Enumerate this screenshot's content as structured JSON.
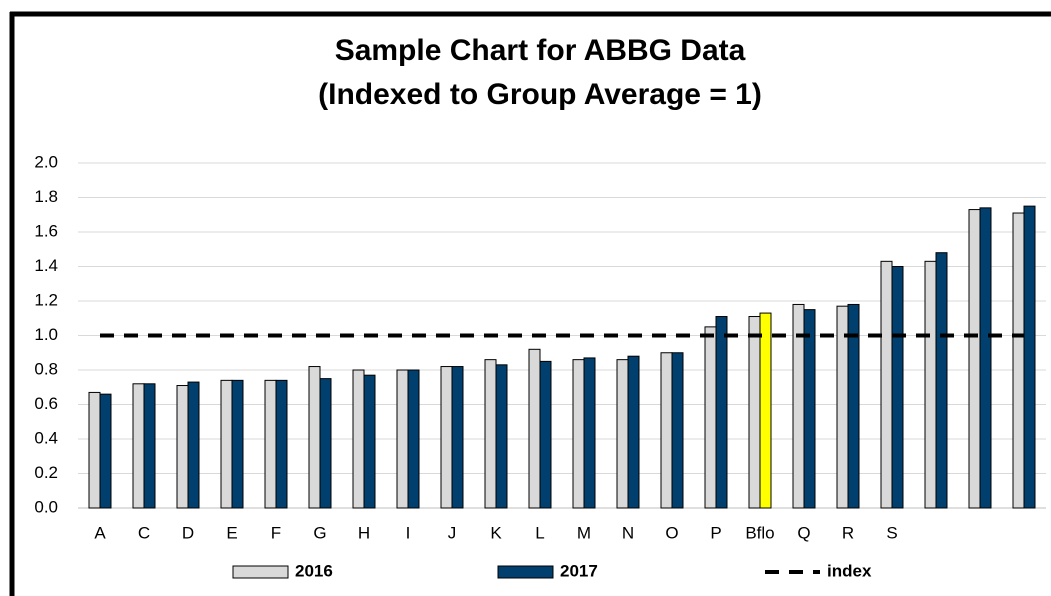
{
  "chart_data": {
    "type": "bar",
    "title": [
      "Sample Chart for ABBG Data",
      "(Indexed to Group Average = 1)"
    ],
    "categories": [
      "A",
      "C",
      "D",
      "E",
      "F",
      "G",
      "H",
      "I",
      "J",
      "K",
      "L",
      "M",
      "N",
      "O",
      "P",
      "Bflo",
      "Q",
      "R",
      "S",
      null,
      null,
      null
    ],
    "series": [
      {
        "name": "2016",
        "color": "#d9d9d9",
        "values": [
          0.67,
          0.72,
          0.71,
          0.74,
          0.74,
          0.82,
          0.8,
          0.8,
          0.82,
          0.86,
          0.92,
          0.86,
          0.86,
          0.9,
          1.05,
          1.11,
          1.18,
          1.17,
          1.43,
          1.43,
          1.73,
          1.71
        ]
      },
      {
        "name": "2017",
        "color": "#003f6e",
        "point_colors": {
          "15": "#ffff00"
        },
        "values": [
          0.66,
          0.72,
          0.73,
          0.74,
          0.74,
          0.75,
          0.77,
          0.8,
          0.82,
          0.83,
          0.85,
          0.87,
          0.88,
          0.9,
          1.11,
          1.13,
          1.15,
          1.18,
          1.4,
          1.48,
          1.74,
          1.75
        ]
      },
      {
        "name": "index",
        "type": "line",
        "dashed": true,
        "color": "#000000",
        "values": [
          1,
          1,
          1,
          1,
          1,
          1,
          1,
          1,
          1,
          1,
          1,
          1,
          1,
          1,
          1,
          1,
          1,
          1,
          1,
          1,
          1,
          1
        ]
      }
    ],
    "ylim": [
      0,
      2
    ],
    "yticks": [
      {
        "value": 0,
        "label": "0.0"
      },
      {
        "value": 0.2,
        "label": "0.2"
      },
      {
        "value": 0.4,
        "label": "0.4"
      },
      {
        "value": 0.6,
        "label": "0.6"
      },
      {
        "value": 0.8,
        "label": "0.8"
      },
      {
        "value": 1,
        "label": "1.0"
      },
      {
        "value": 1.2,
        "label": "1.2"
      },
      {
        "value": 1.4,
        "label": "1.4"
      },
      {
        "value": 1.6,
        "label": "1.6"
      },
      {
        "value": 1.8,
        "label": "1.8"
      },
      {
        "value": 2,
        "label": "2.0"
      }
    ],
    "grid": true,
    "legend": "bottom"
  }
}
